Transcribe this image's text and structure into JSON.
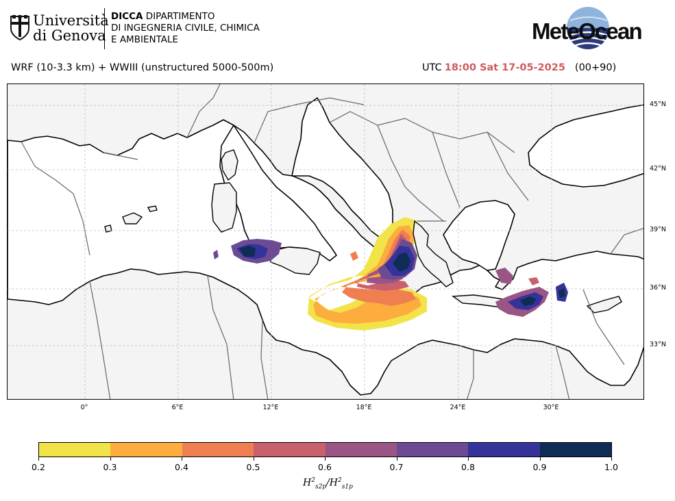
{
  "header": {
    "university_line1": "Università",
    "university_line2": "di Genova",
    "dept_acronym": "DICCA",
    "dept_line1": "DIPARTIMENTO",
    "dept_line2": "DI INGEGNERIA CIVILE, CHIMICA",
    "dept_line3": "E AMBIENTALE",
    "brand": "MeteOcean",
    "brand_colors": {
      "text": "#0d0d0d",
      "globe_light": "#7fa8d4",
      "globe_dark": "#2b3a7a"
    }
  },
  "title_row": {
    "model": "WRF (10-3.3 km) + WWIII (unstructured 5000-500m)",
    "utc_label": "UTC",
    "timestamp": "18:00 Sat 17-05-2025",
    "lead": "(00+90)",
    "timestamp_color": "#cd5c5c"
  },
  "map": {
    "land_color": "#f4f4f4",
    "sea_color": "#ffffff",
    "lat_labels": [
      "45°N",
      "42°N",
      "39°N",
      "36°N",
      "33°N"
    ],
    "lon_labels": [
      "0°",
      "6°E",
      "12°E",
      "18°E",
      "24°E",
      "30°E"
    ]
  },
  "colorbar": {
    "ticks": [
      "0.2",
      "0.3",
      "0.4",
      "0.5",
      "0.6",
      "0.7",
      "0.8",
      "0.9",
      "1.0"
    ],
    "colors": [
      "#f2e349",
      "#fcad3e",
      "#ef7f51",
      "#c9616d",
      "#9a5585",
      "#6d4b94",
      "#35329a",
      "#0e2c54"
    ],
    "label_main": "H",
    "label_sup1": "2",
    "label_sub1": "s2p",
    "label_slash": "/H",
    "label_sup2": "2",
    "label_sub2": "s1p"
  }
}
